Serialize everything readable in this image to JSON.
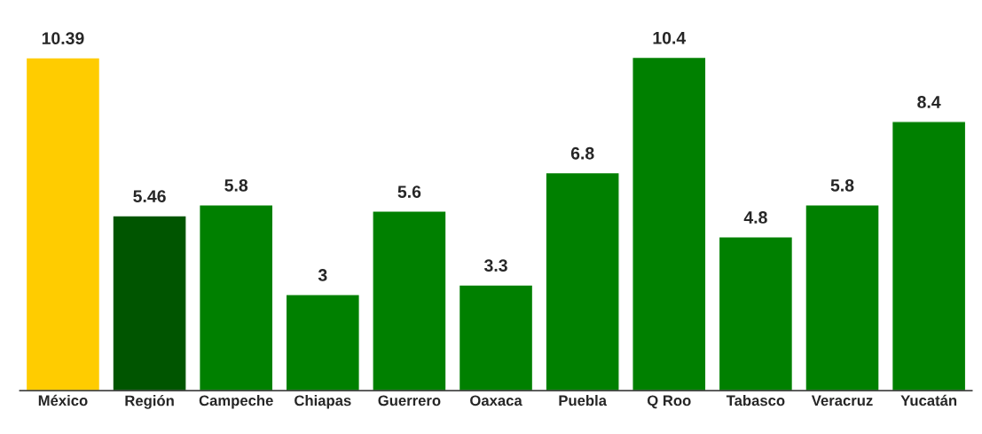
{
  "chart_data": {
    "type": "bar",
    "categories": [
      "México",
      "Región",
      "Campeche",
      "Chiapas",
      "Guerrero",
      "Oaxaca",
      "Puebla",
      "Q Roo",
      "Tabasco",
      "Veracruz",
      "Yucatán"
    ],
    "values": [
      10.39,
      5.46,
      5.8,
      3,
      5.6,
      3.3,
      6.8,
      10.4,
      4.8,
      5.8,
      8.4
    ],
    "colors": [
      "#ffcc00",
      "#005500",
      "#008000",
      "#008000",
      "#008000",
      "#008000",
      "#008000",
      "#008000",
      "#008000",
      "#008000",
      "#008000"
    ],
    "data_labels": true,
    "tick_labels": "x",
    "grid": false,
    "legend": false
  }
}
